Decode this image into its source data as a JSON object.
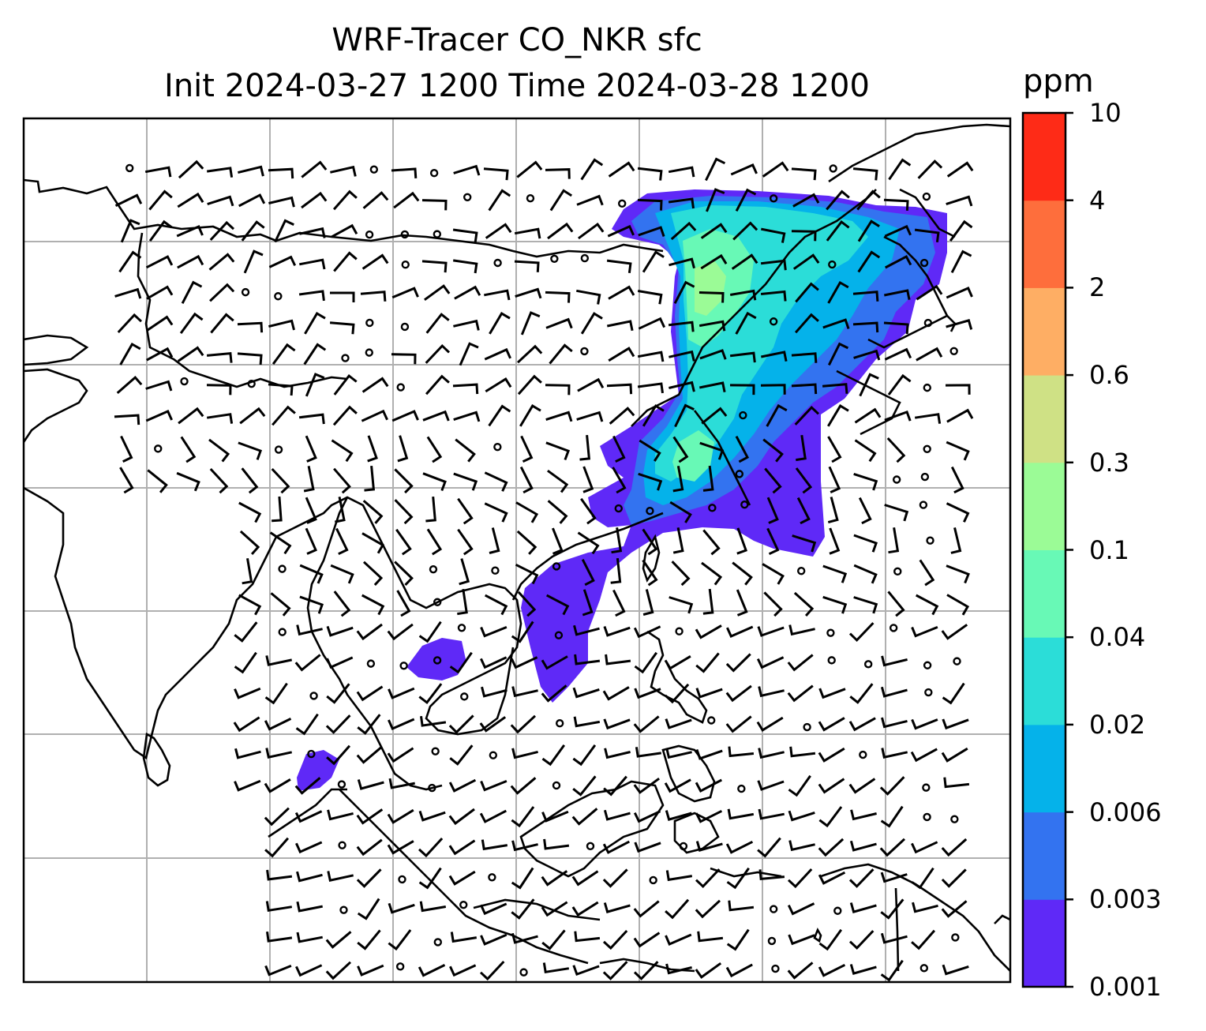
{
  "title": "WRF-Tracer CO_NKR sfc",
  "subtitle": "Init 2024-03-27 1200 Time 2024-03-28 1200",
  "colorbar": {
    "unit": "ppm",
    "ticks": [
      "0.001",
      "0.003",
      "0.006",
      "0.02",
      "0.04",
      "0.1",
      "0.3",
      "0.6",
      "2",
      "4",
      "10"
    ],
    "colors": [
      "#5f29f7",
      "#3373f0",
      "#05b2ea",
      "#2bddd8",
      "#68f9b6",
      "#9bfb96",
      "#cfe185",
      "#feae64",
      "#fe6e3c",
      "#fe2b17"
    ]
  },
  "layers": {
    "coastlines": "coastline-outline",
    "gridlines": "gray",
    "wind": "wind-barbs",
    "tracer": "CO_NKR filled contours"
  }
}
